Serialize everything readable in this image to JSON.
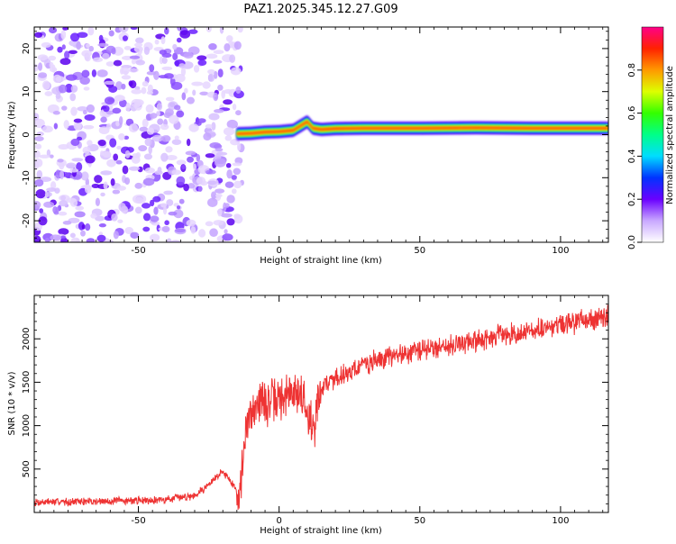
{
  "title": "PAZ1.2025.345.12.27.G09",
  "chart_data": [
    {
      "type": "heatmap",
      "title": "PAZ1.2025.345.12.27.G09",
      "xlabel": "Height of straight line (km)",
      "ylabel": "Frequency (Hz)",
      "xlim": [
        -87,
        117
      ],
      "ylim": [
        -25,
        25
      ],
      "xticks": [
        -50,
        0,
        50,
        100
      ],
      "yticks": [
        -20,
        -10,
        0,
        10,
        20
      ],
      "noise_region_x": [
        -87,
        -15
      ],
      "signal_band": {
        "x": [
          -15,
          -10,
          -5,
          0,
          5,
          8,
          10,
          12,
          15,
          20,
          30,
          50,
          70,
          90,
          117
        ],
        "freq": [
          0.2,
          0.3,
          0.6,
          0.7,
          1.0,
          2.2,
          3.0,
          1.5,
          1.2,
          1.4,
          1.5,
          1.5,
          1.6,
          1.5,
          1.5
        ]
      },
      "colorbar": {
        "label": "Normalized spectral amplitude",
        "range": [
          0.0,
          1.0
        ],
        "ticks": [
          0.0,
          0.2,
          0.4,
          0.6,
          0.8
        ],
        "tick_labels": [
          "0.0",
          "0.2",
          "0.4",
          "0.6",
          "0.8"
        ]
      }
    },
    {
      "type": "line",
      "xlabel": "Height of straight line (km)",
      "ylabel": "SNR (10 * v/v)",
      "xlim": [
        -87,
        117
      ],
      "ylim": [
        0,
        2500
      ],
      "xticks": [
        -50,
        0,
        50,
        100
      ],
      "yticks": [
        500,
        1000,
        1500,
        2000
      ],
      "series": [
        {
          "name": "SNR",
          "color": "#ee3333",
          "x": [
            -87,
            -60,
            -40,
            -30,
            -25,
            -20,
            -17,
            -14,
            -12,
            -10,
            -8,
            -5,
            0,
            3,
            6,
            9,
            12,
            15,
            20,
            30,
            40,
            50,
            60,
            70,
            80,
            90,
            95,
            100,
            110,
            117
          ],
          "y": [
            120,
            130,
            150,
            200,
            320,
            480,
            350,
            200,
            900,
            1150,
            1300,
            1250,
            1300,
            1350,
            1400,
            1300,
            950,
            1450,
            1550,
            1700,
            1800,
            1870,
            1920,
            1980,
            2050,
            2080,
            2120,
            2150,
            2230,
            2250
          ]
        }
      ]
    }
  ]
}
